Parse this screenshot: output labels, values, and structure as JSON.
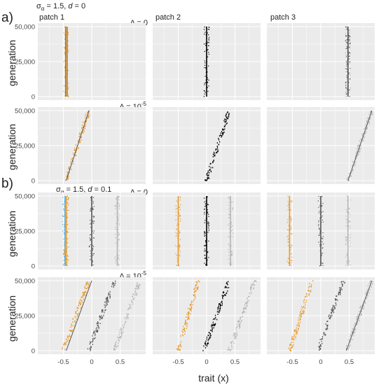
{
  "panel_labels": [
    "a)",
    "b)"
  ],
  "section_headers": [
    {
      "prefix": "σ",
      "sub": "α",
      "rest": " = 1.5, ",
      "d_sym": "d",
      "d_rest": " = 0"
    },
    {
      "prefix": "σ",
      "sub": "α",
      "rest": " = 1.5, ",
      "d_sym": "d",
      "d_rest": " = 0.1"
    }
  ],
  "patch_titles": [
    "patch 1",
    "patch 2",
    "patch 3"
  ],
  "row_delta_labels": [
    {
      "text": "Δ = 0",
      "sup": ""
    },
    {
      "text": "Δ = 10",
      "sup": "-5"
    },
    {
      "text": "Δ = 0",
      "sup": ""
    },
    {
      "text": "Δ = 10",
      "sup": "-5"
    }
  ],
  "y_axis_label": "generation",
  "x_axis_label": "trait (x)",
  "y_tick_labels": [
    "0",
    "25,000",
    "50,000"
  ],
  "x_tick_labels": [
    "-0.5",
    "0",
    "0.5"
  ],
  "colors": {
    "panel_bg": "#ebebeb",
    "grid": "#ffffff",
    "orange": "#e89a2c",
    "blue": "#56b4e9",
    "black": "#000000",
    "dark_gray": "#555555",
    "light_gray": "#b5b5b5",
    "red_line": "#c0392b",
    "teal_line": "#1f8f7a"
  },
  "chart_data": {
    "type": "scatter",
    "layout": "faceted 4 rows x 3 columns (patch 1, patch 2, patch 3)",
    "x_label": "trait (x)",
    "y_label": "generation",
    "xlim": [
      -0.95,
      0.95
    ],
    "ylim": [
      -2500,
      52500
    ],
    "x_ticks": [
      -0.5,
      0,
      0.5
    ],
    "y_ticks": [
      0,
      25000,
      50000
    ],
    "grid": true,
    "facets": [
      {
        "row": 1,
        "section": "a",
        "condition": "σα = 1.5, d = 0",
        "delta": "0",
        "panels": [
          {
            "patch": 1,
            "series": [
              {
                "color": "orange",
                "kind": "vertical",
                "x": -0.45,
                "y": [
                  0,
                  50000
                ]
              },
              {
                "color": "red_line",
                "kind": "vertical",
                "x": -0.46,
                "y": [
                  0,
                  50000
                ]
              },
              {
                "color": "teal_line",
                "kind": "vertical",
                "x": -0.43,
                "y": [
                  0,
                  50000
                ]
              }
            ]
          },
          {
            "patch": 2,
            "series": [
              {
                "color": "black",
                "kind": "vertical",
                "x": 0.0,
                "y": [
                  0,
                  50000
                ]
              }
            ]
          },
          {
            "patch": 3,
            "series": [
              {
                "color": "light_gray",
                "kind": "vertical",
                "x": 0.48,
                "y": [
                  0,
                  50000
                ]
              },
              {
                "color": "dark_gray",
                "kind": "vertical",
                "x": 0.48,
                "y": [
                  0,
                  50000
                ]
              }
            ]
          }
        ]
      },
      {
        "row": 2,
        "section": "a",
        "condition": "σα = 1.5, d = 0",
        "delta": "1e-5",
        "panels": [
          {
            "patch": 1,
            "series": [
              {
                "color": "orange",
                "kind": "drift",
                "x_start": -0.45,
                "x_end": -0.05,
                "y": [
                  0,
                  50000
                ]
              },
              {
                "color": "dark_gray",
                "kind": "trend_line",
                "x_start": -0.45,
                "x_end": -0.05,
                "y": [
                  0,
                  50000
                ]
              }
            ]
          },
          {
            "patch": 2,
            "series": [
              {
                "color": "black",
                "kind": "drift",
                "x_start": 0.0,
                "x_end": 0.4,
                "y": [
                  0,
                  50000
                ]
              }
            ]
          },
          {
            "patch": 3,
            "series": [
              {
                "color": "light_gray",
                "kind": "drift",
                "x_start": 0.48,
                "x_end": 0.9,
                "y": [
                  0,
                  50000
                ]
              },
              {
                "color": "dark_gray",
                "kind": "trend_line",
                "x_start": 0.48,
                "x_end": 0.9,
                "y": [
                  0,
                  50000
                ]
              }
            ]
          }
        ]
      },
      {
        "row": 3,
        "section": "b",
        "condition": "σα = 1.5, d = 0.1",
        "delta": "0",
        "panels": [
          {
            "patch": 1,
            "series": [
              {
                "color": "blue",
                "kind": "vertical",
                "x": -0.47,
                "y": [
                  0,
                  50000
                ]
              },
              {
                "color": "orange",
                "kind": "vertical",
                "x": -0.45,
                "y": [
                  0,
                  50000
                ]
              },
              {
                "color": "dark_gray",
                "kind": "vertical",
                "x": 0.0,
                "y": [
                  0,
                  50000
                ]
              },
              {
                "color": "light_gray",
                "kind": "vertical",
                "x": 0.45,
                "y": [
                  0,
                  50000
                ]
              }
            ]
          },
          {
            "patch": 2,
            "series": [
              {
                "color": "orange",
                "kind": "vertical",
                "x": -0.5,
                "y": [
                  0,
                  50000
                ]
              },
              {
                "color": "black",
                "kind": "vertical",
                "x": 0.0,
                "y": [
                  0,
                  50000
                ]
              },
              {
                "color": "light_gray",
                "kind": "vertical",
                "x": 0.42,
                "y": [
                  0,
                  50000
                ]
              }
            ]
          },
          {
            "patch": 3,
            "series": [
              {
                "color": "orange",
                "kind": "vertical",
                "x": -0.55,
                "y": [
                  0,
                  50000
                ]
              },
              {
                "color": "dark_gray",
                "kind": "vertical",
                "x": 0.0,
                "y": [
                  0,
                  50000
                ]
              },
              {
                "color": "light_gray",
                "kind": "vertical",
                "x": 0.48,
                "y": [
                  0,
                  50000
                ]
              }
            ]
          }
        ]
      },
      {
        "row": 4,
        "section": "b",
        "condition": "σα = 1.5, d = 0.1",
        "delta": "1e-5",
        "panels": [
          {
            "patch": 1,
            "series": [
              {
                "color": "orange",
                "kind": "drift",
                "x_start": -0.5,
                "x_end": -0.05,
                "y": [
                  0,
                  50000
                ]
              },
              {
                "color": "dark_gray",
                "kind": "drift",
                "x_start": -0.05,
                "x_end": 0.4,
                "y": [
                  0,
                  50000
                ]
              },
              {
                "color": "light_gray",
                "kind": "drift",
                "x_start": 0.4,
                "x_end": 0.85,
                "y": [
                  0,
                  50000
                ]
              },
              {
                "color": "dark_gray",
                "kind": "trend_line",
                "x_start": -0.45,
                "x_end": 0.0,
                "y": [
                  0,
                  50000
                ]
              }
            ]
          },
          {
            "patch": 2,
            "series": [
              {
                "color": "orange",
                "kind": "drift",
                "x_start": -0.5,
                "x_end": -0.15,
                "y": [
                  0,
                  50000
                ]
              },
              {
                "color": "black",
                "kind": "drift",
                "x_start": -0.05,
                "x_end": 0.4,
                "y": [
                  0,
                  50000
                ]
              },
              {
                "color": "light_gray",
                "kind": "drift",
                "x_start": 0.4,
                "x_end": 0.85,
                "y": [
                  0,
                  50000
                ]
              }
            ]
          },
          {
            "patch": 3,
            "series": [
              {
                "color": "orange",
                "kind": "drift",
                "x_start": -0.55,
                "x_end": -0.15,
                "y": [
                  0,
                  50000
                ]
              },
              {
                "color": "dark_gray",
                "kind": "drift",
                "x_start": -0.05,
                "x_end": 0.4,
                "y": [
                  0,
                  50000
                ]
              },
              {
                "color": "light_gray",
                "kind": "drift",
                "x_start": 0.45,
                "x_end": 0.9,
                "y": [
                  0,
                  50000
                ]
              },
              {
                "color": "dark_gray",
                "kind": "trend_line",
                "x_start": 0.45,
                "x_end": 0.9,
                "y": [
                  0,
                  50000
                ]
              }
            ]
          }
        ]
      }
    ]
  }
}
